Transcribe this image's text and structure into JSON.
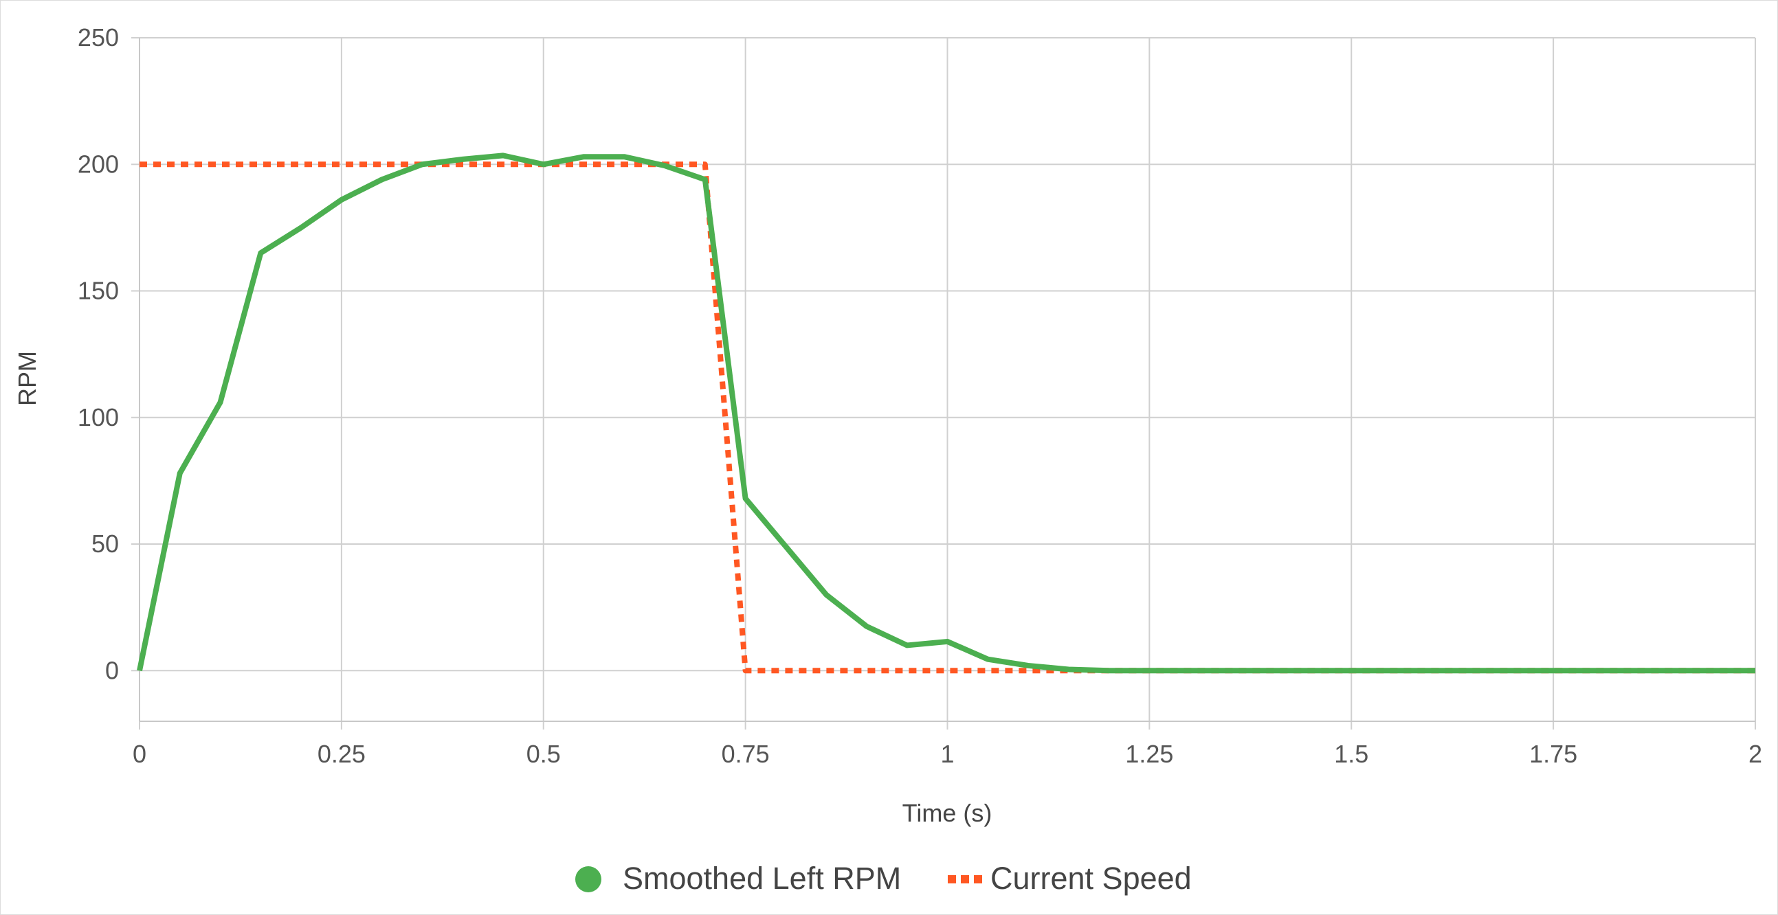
{
  "chart_data": {
    "type": "line",
    "title": "",
    "xlabel": "Time (s)",
    "ylabel": "RPM",
    "xlim": [
      0,
      2
    ],
    "ylim": [
      -20,
      250
    ],
    "x_ticks": [
      0,
      0.25,
      0.5,
      0.75,
      1,
      1.25,
      1.5,
      1.75,
      2
    ],
    "x_tick_labels": [
      "0",
      "0.25",
      "0.5",
      "0.75",
      "1",
      "1.25",
      "1.5",
      "1.75",
      "2"
    ],
    "y_ticks": [
      0,
      50,
      100,
      150,
      200,
      250
    ],
    "y_tick_labels": [
      "0",
      "50",
      "100",
      "150",
      "200",
      "250"
    ],
    "grid": true,
    "legend_position": "bottom",
    "series": [
      {
        "name": "Smoothed Left RPM",
        "color": "#4caf50",
        "style": "solid",
        "legend_marker": "circle",
        "x": [
          0,
          0.05,
          0.1,
          0.15,
          0.2,
          0.25,
          0.3,
          0.35,
          0.4,
          0.45,
          0.5,
          0.55,
          0.6,
          0.65,
          0.7,
          0.75,
          0.8,
          0.85,
          0.9,
          0.95,
          1,
          1.05,
          1.1,
          1.15,
          1.2,
          1.25,
          1.3,
          1.35,
          1.4,
          1.45,
          1.5,
          1.55,
          1.6,
          1.65,
          1.7,
          1.75,
          1.8,
          1.85,
          1.9,
          1.95,
          2
        ],
        "y": [
          0,
          78,
          106,
          165,
          175,
          186,
          194,
          200,
          202,
          203.5,
          200,
          203,
          203,
          199.5,
          194,
          68,
          49,
          30,
          17.5,
          10,
          11.5,
          4.5,
          2,
          0.5,
          0,
          0,
          0,
          0,
          0,
          0,
          0,
          0,
          0,
          0,
          0,
          0,
          0,
          0,
          0,
          0,
          0
        ]
      },
      {
        "name": "Current Speed",
        "color": "#ff5722",
        "style": "dashed",
        "legend_marker": "dashes",
        "x": [
          0,
          0.05,
          0.1,
          0.15,
          0.2,
          0.25,
          0.3,
          0.35,
          0.4,
          0.45,
          0.5,
          0.55,
          0.6,
          0.65,
          0.7,
          0.75,
          0.8,
          0.85,
          0.9,
          0.95,
          1,
          1.05,
          1.1,
          1.15,
          1.2,
          1.25,
          1.3,
          1.35,
          1.4,
          1.45,
          1.5,
          1.55,
          1.6,
          1.65,
          1.7,
          1.75,
          1.8,
          1.85,
          1.9,
          1.95,
          2
        ],
        "y": [
          200,
          200,
          200,
          200,
          200,
          200,
          200,
          200,
          200,
          200,
          200,
          200,
          200,
          200,
          200,
          0,
          0,
          0,
          0,
          0,
          0,
          0,
          0,
          0,
          0,
          0,
          0,
          0,
          0,
          0,
          0,
          0,
          0,
          0,
          0,
          0,
          0,
          0,
          0,
          0,
          0
        ]
      }
    ]
  }
}
